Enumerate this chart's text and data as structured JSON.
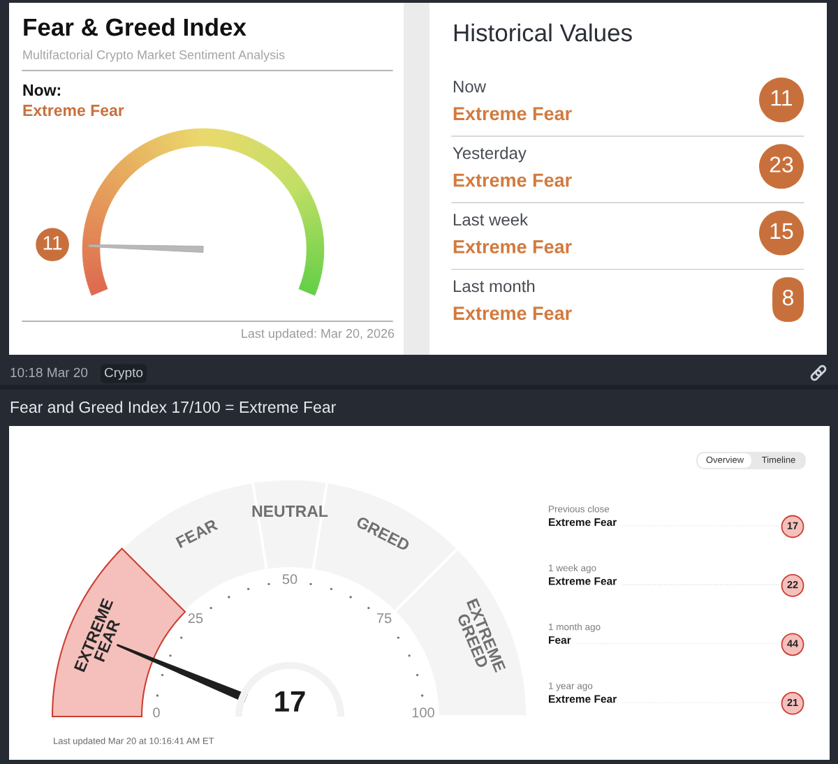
{
  "chart_data": [
    {
      "type": "other",
      "title": "Fear & Greed Index",
      "subtitle": "Multifactorial Crypto Market Sentiment Analysis",
      "annotations": [
        "Now:",
        "Extreme Fear",
        "11",
        "Last updated: Mar 20, 2026"
      ],
      "color": "#c8703c"
    },
    {
      "type": "other",
      "title": "Historical Values",
      "categories": [
        "Now",
        "Yesterday",
        "Last week",
        "Last month"
      ],
      "values": [
        11,
        23,
        15,
        8
      ],
      "annotations": [
        "Extreme Fear",
        "Extreme Fear",
        "Extreme Fear",
        "Extreme Fear"
      ],
      "data_labels": true
    },
    {
      "type": "other",
      "annotations": [
        "10:18 Mar 20",
        "Crypto"
      ]
    },
    {
      "type": "donut",
      "title": "Fear and Greed Index 17/100 = Extreme Fear",
      "categories": [
        "EXTREME GREED",
        "GREED",
        "NEUTRAL",
        "FEAR",
        "EXTREME FEAR"
      ],
      "values": [
        25,
        20,
        10,
        20,
        25
      ],
      "colors": [
        "#f4f4f4",
        "#f4f4f4",
        "#f4f4f4",
        "#f4f4f4",
        "#f5c0bc"
      ],
      "needle": "EXTREME FEAR",
      "annotations": [
        "0",
        "25",
        "50",
        "75",
        "100",
        "17",
        "Last updated Mar 20 at 10:16:41 AM ET"
      ]
    },
    {
      "type": "other",
      "categories": [
        "Previous close",
        "1 week ago",
        "1 month ago",
        "1 year ago"
      ],
      "values": [
        17,
        22,
        44,
        21
      ],
      "annotations": [
        "Extreme Fear",
        "Extreme Fear",
        "Fear",
        "Extreme Fear",
        "Overview",
        "Timeline"
      ],
      "data_labels": true
    }
  ]
}
